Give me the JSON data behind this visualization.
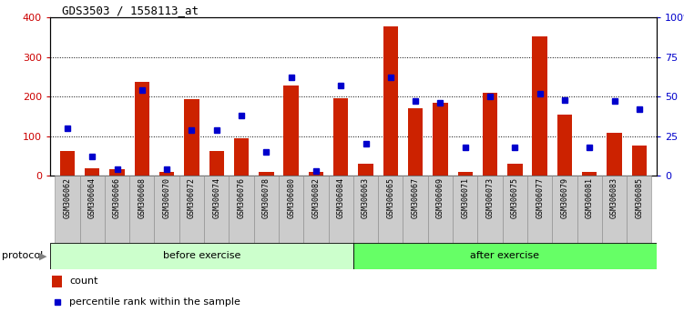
{
  "title": "GDS3503 / 1558113_at",
  "samples": [
    "GSM306062",
    "GSM306064",
    "GSM306066",
    "GSM306068",
    "GSM306070",
    "GSM306072",
    "GSM306074",
    "GSM306076",
    "GSM306078",
    "GSM306080",
    "GSM306082",
    "GSM306084",
    "GSM306063",
    "GSM306065",
    "GSM306067",
    "GSM306069",
    "GSM306071",
    "GSM306073",
    "GSM306075",
    "GSM306077",
    "GSM306079",
    "GSM306081",
    "GSM306083",
    "GSM306085"
  ],
  "counts": [
    62,
    18,
    15,
    237,
    10,
    193,
    62,
    95,
    10,
    228,
    10,
    195,
    30,
    378,
    170,
    185,
    10,
    210,
    30,
    352,
    155,
    10,
    108,
    75
  ],
  "percentile": [
    30,
    12,
    4,
    54,
    4,
    29,
    29,
    38,
    15,
    62,
    3,
    57,
    20,
    62,
    47,
    46,
    18,
    50,
    18,
    52,
    48,
    18,
    47,
    42
  ],
  "before_count": 12,
  "after_count": 12,
  "group_label_before": "before exercise",
  "group_label_after": "after exercise",
  "color_before": "#ccffcc",
  "color_after": "#66ff66",
  "bar_color": "#cc2200",
  "dot_color": "#0000cc",
  "left_ylim": [
    0,
    400
  ],
  "right_ylim": [
    0,
    100
  ],
  "left_yticks": [
    0,
    100,
    200,
    300,
    400
  ],
  "right_yticks": [
    0,
    25,
    50,
    75,
    100
  ],
  "right_yticklabels": [
    "0",
    "25",
    "50",
    "75",
    "100%"
  ],
  "protocol_label": "protocol",
  "legend_count_label": "count",
  "legend_pct_label": "percentile rank within the sample",
  "left_axis_color": "#cc0000",
  "right_axis_color": "#0000cc",
  "tick_bg_color": "#cccccc",
  "tick_border_color": "#888888"
}
